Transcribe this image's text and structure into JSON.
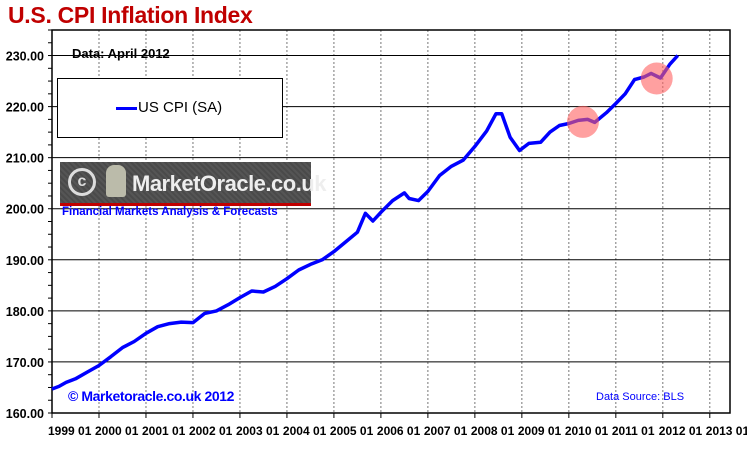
{
  "chart_data": {
    "type": "line",
    "title": "U.S. CPI Inflation Index",
    "annotation": "Data: April  2012",
    "source": "Data Source: BLS",
    "copyright": "© Marketoracle.co.uk 2012",
    "watermark": {
      "name": "MarketOracle.co.uk",
      "tagline": "Financial Markets Analysis & Forecasts"
    },
    "ylim": [
      160,
      235
    ],
    "xlim": [
      1999.0,
      2013.43
    ],
    "grid": true,
    "legend_placement": "top-left",
    "yticks": [
      "160.00",
      "170.00",
      "180.00",
      "190.00",
      "200.00",
      "210.00",
      "220.00",
      "230.00"
    ],
    "xticks": [
      "1999 01",
      "2000 01",
      "2001 01",
      "2002 01",
      "2003 01",
      "2004 01",
      "2005 01",
      "2006 01",
      "2007 01",
      "2008 01",
      "2009 01",
      "2010 01",
      "2011 01",
      "2012 01",
      "2013 01"
    ],
    "series": [
      {
        "name": "US CPI (SA)",
        "color": "#0000ff",
        "x": [
          1999.0,
          1999.15,
          1999.3,
          1999.5,
          1999.75,
          2000.0,
          2000.25,
          2000.5,
          2000.75,
          2001.0,
          2001.25,
          2001.5,
          2001.75,
          2002.0,
          2002.25,
          2002.5,
          2002.75,
          2003.0,
          2003.25,
          2003.5,
          2003.75,
          2004.0,
          2004.25,
          2004.5,
          2004.75,
          2005.0,
          2005.25,
          2005.5,
          2005.67,
          2005.83,
          2006.0,
          2006.25,
          2006.5,
          2006.6,
          2006.8,
          2007.0,
          2007.25,
          2007.5,
          2007.75,
          2008.0,
          2008.25,
          2008.45,
          2008.57,
          2008.75,
          2008.95,
          2009.15,
          2009.4,
          2009.6,
          2009.8,
          2010.0,
          2010.2,
          2010.4,
          2010.55,
          2010.8,
          2011.0,
          2011.2,
          2011.4,
          2011.6,
          2011.75,
          2011.95,
          2012.15,
          2012.32
        ],
        "y": [
          164.7,
          165.2,
          166.0,
          166.7,
          168.0,
          169.3,
          171.0,
          172.8,
          174.0,
          175.6,
          176.9,
          177.5,
          177.8,
          177.7,
          179.5,
          180.0,
          181.2,
          182.6,
          183.9,
          183.7,
          184.8,
          186.3,
          188.0,
          189.1,
          190.0,
          191.6,
          193.5,
          195.4,
          199.1,
          197.6,
          199.3,
          201.6,
          203.1,
          202.0,
          201.6,
          203.4,
          206.5,
          208.3,
          209.5,
          212.2,
          215.2,
          218.6,
          218.6,
          214.0,
          211.4,
          212.8,
          213.0,
          215.0,
          216.3,
          216.7,
          217.3,
          217.5,
          216.9,
          218.8,
          220.6,
          222.5,
          225.3,
          225.8,
          226.5,
          225.6,
          228.3,
          230.0
        ]
      }
    ],
    "highlights": [
      {
        "x": 2010.3,
        "y": 217.0
      },
      {
        "x": 2011.87,
        "y": 225.5
      }
    ],
    "highlight_color": "#ff6060"
  }
}
